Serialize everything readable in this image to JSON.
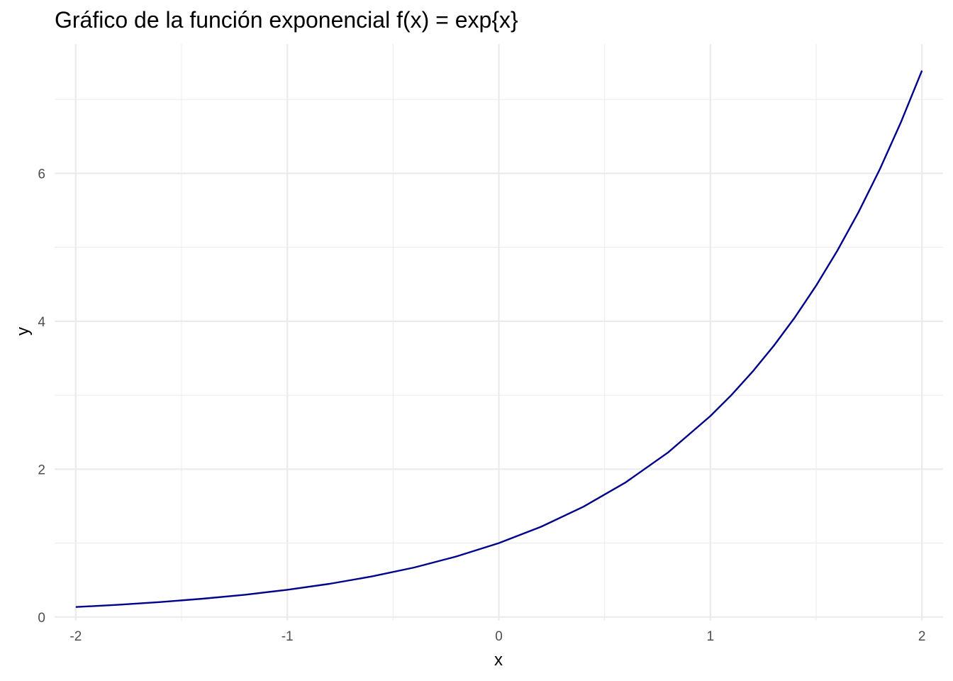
{
  "chart_data": {
    "type": "line",
    "title": "Gráfico de la función exponencial f(x) = exp{x}",
    "xlabel": "x",
    "ylabel": "y",
    "xlim": [
      -2.1,
      2.1
    ],
    "ylim": [
      -0.05,
      7.75
    ],
    "x_ticks": [
      -2,
      -1,
      0,
      1,
      2
    ],
    "x_tick_labels": [
      "-2",
      "-1",
      "0",
      "1",
      "2"
    ],
    "y_ticks": [
      0,
      2,
      4,
      6
    ],
    "y_tick_labels": [
      "0",
      "2",
      "4",
      "6"
    ],
    "x_minor_ticks": [
      -1.5,
      -0.5,
      0.5,
      1.5
    ],
    "y_minor_ticks": [
      1,
      3,
      5,
      7
    ],
    "grid": true,
    "series": [
      {
        "color": "#00008B",
        "x": [
          -2.0,
          -1.8,
          -1.6,
          -1.4,
          -1.2,
          -1.0,
          -0.8,
          -0.6,
          -0.4,
          -0.2,
          0.0,
          0.2,
          0.4,
          0.6,
          0.8,
          1.0,
          1.1,
          1.2,
          1.3,
          1.4,
          1.5,
          1.6,
          1.7,
          1.8,
          1.9,
          2.0
        ],
        "y": [
          0.135,
          0.165,
          0.202,
          0.247,
          0.301,
          0.368,
          0.449,
          0.549,
          0.67,
          0.819,
          1.0,
          1.221,
          1.492,
          1.822,
          2.226,
          2.718,
          3.004,
          3.32,
          3.669,
          4.055,
          4.482,
          4.953,
          5.474,
          6.05,
          6.686,
          7.389
        ]
      }
    ]
  }
}
